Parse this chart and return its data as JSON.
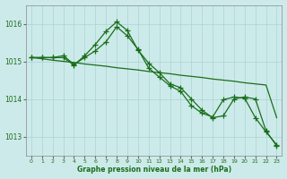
{
  "background_color": "#cdeaea",
  "line_color": "#1a6e1a",
  "grid_color": "#a8d4d4",
  "xlabel": "Graphe pression niveau de la mer (hPa)",
  "ylim": [
    1012.5,
    1016.5
  ],
  "xlim": [
    -0.5,
    23.5
  ],
  "yticks": [
    1013,
    1014,
    1015,
    1016
  ],
  "xticks": [
    0,
    1,
    2,
    3,
    4,
    5,
    6,
    7,
    8,
    9,
    10,
    11,
    12,
    13,
    14,
    15,
    16,
    17,
    18,
    19,
    20,
    21,
    22,
    23
  ],
  "series1_x": [
    0,
    1,
    2,
    3,
    4,
    5,
    6,
    7,
    8,
    9,
    10,
    11,
    12,
    13,
    14,
    15,
    16,
    17,
    18,
    19,
    20,
    21,
    22,
    23
  ],
  "series1_y": [
    1015.1,
    1015.07,
    1015.03,
    1015.0,
    1014.97,
    1014.93,
    1014.9,
    1014.87,
    1014.83,
    1014.8,
    1014.77,
    1014.73,
    1014.7,
    1014.67,
    1014.63,
    1014.6,
    1014.57,
    1014.53,
    1014.5,
    1014.47,
    1014.43,
    1014.4,
    1014.37,
    1013.5
  ],
  "series2_x": [
    0,
    1,
    2,
    3,
    4,
    5,
    6,
    7,
    8,
    9,
    10,
    11,
    12,
    13,
    14,
    15,
    16,
    17,
    18,
    19,
    20,
    21,
    22,
    23
  ],
  "series2_y": [
    1015.1,
    1015.1,
    1015.1,
    1015.1,
    1014.9,
    1015.15,
    1015.45,
    1015.8,
    1016.05,
    1015.82,
    1015.3,
    1014.95,
    1014.7,
    1014.4,
    1014.3,
    1014.0,
    1013.7,
    1013.5,
    1013.55,
    1014.0,
    1014.05,
    1014.0,
    1013.15,
    1012.75
  ],
  "series3_x": [
    0,
    1,
    2,
    3,
    4,
    5,
    6,
    7,
    8,
    9,
    10,
    11,
    12,
    13,
    14,
    15,
    16,
    17,
    18,
    19,
    20,
    21,
    22,
    23
  ],
  "series3_y": [
    1015.1,
    1015.1,
    1015.1,
    1015.15,
    1014.92,
    1015.1,
    1015.28,
    1015.52,
    1015.92,
    1015.68,
    1015.32,
    1014.82,
    1014.58,
    1014.35,
    1014.2,
    1013.82,
    1013.62,
    1013.52,
    1013.98,
    1014.05,
    1014.02,
    1013.5,
    1013.12,
    1012.78
  ]
}
